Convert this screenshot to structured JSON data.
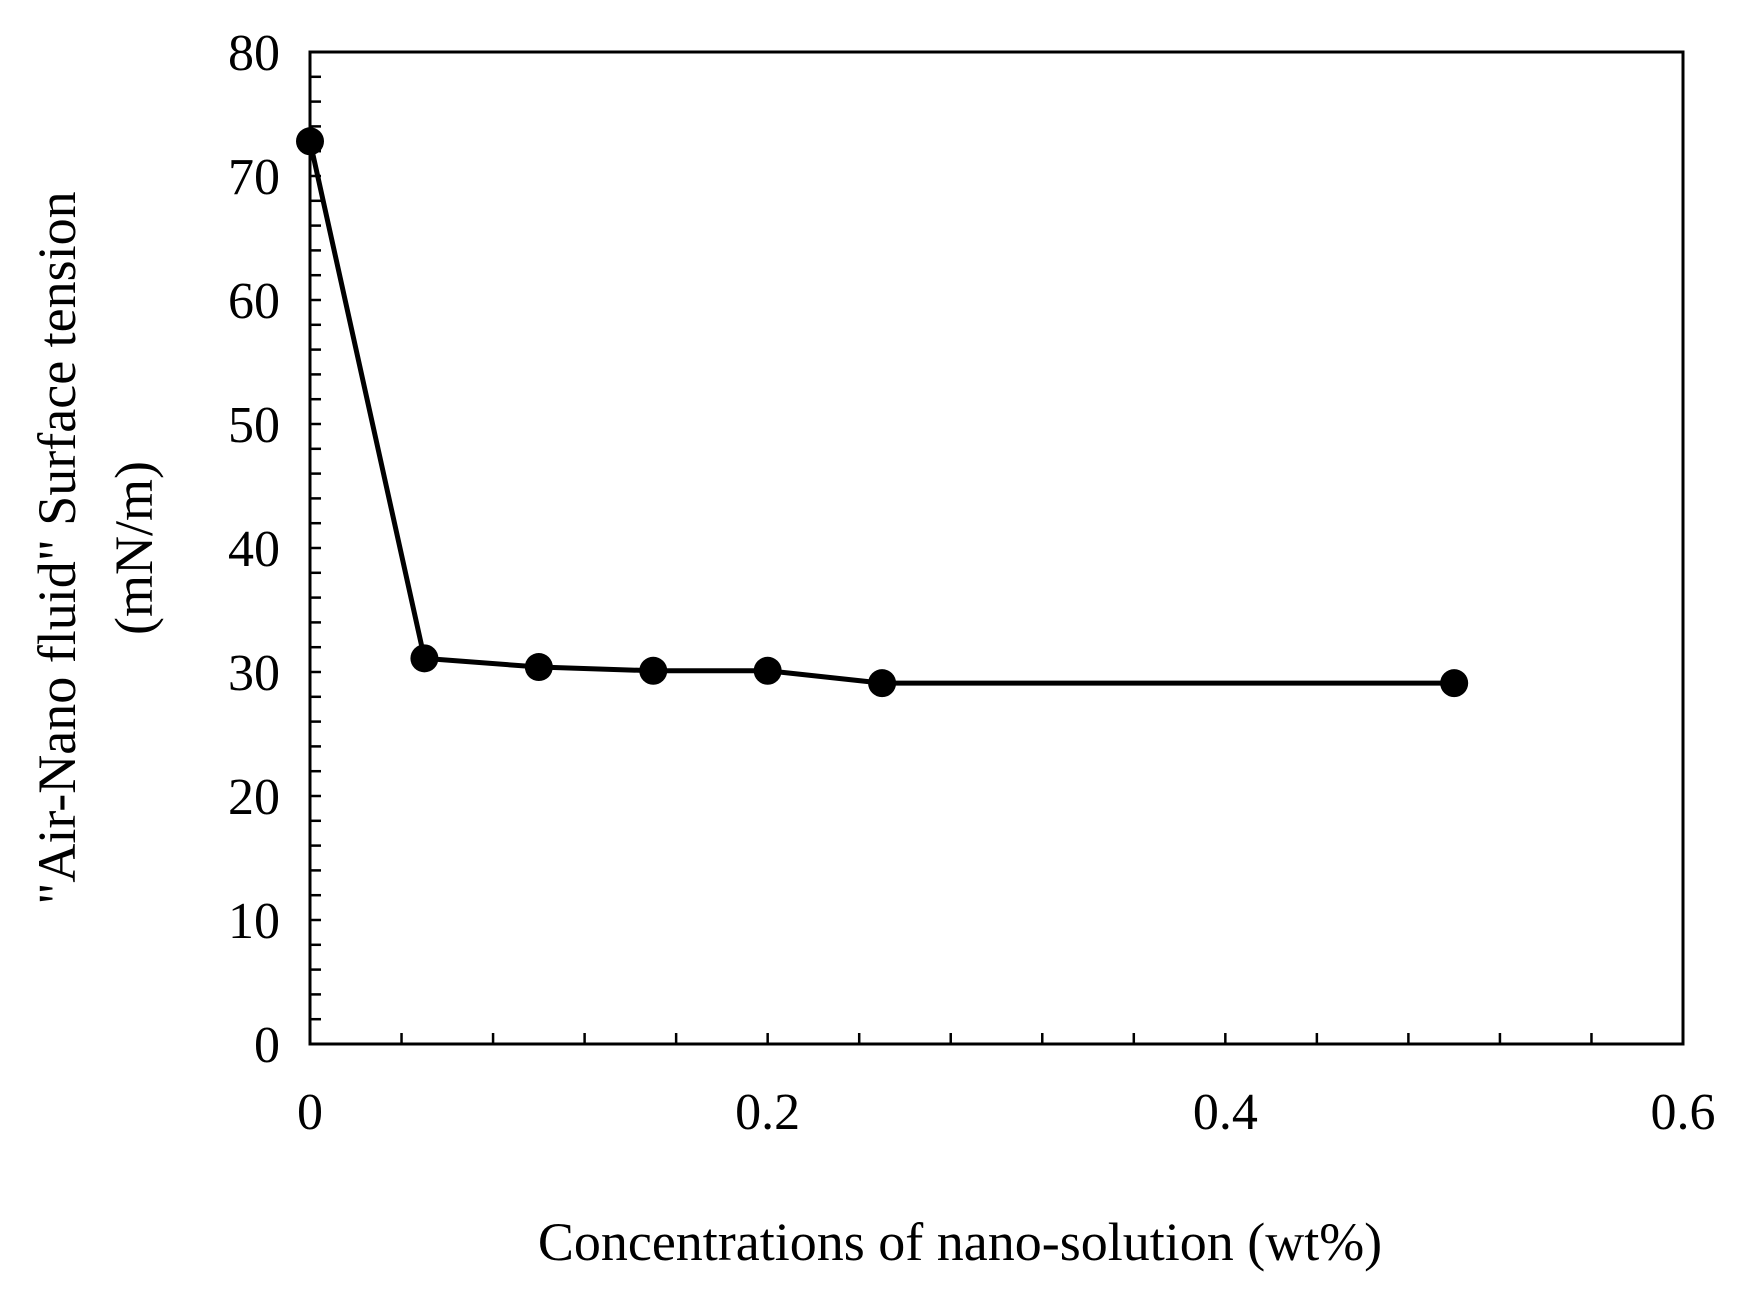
{
  "chart_data": {
    "type": "line",
    "title": "",
    "xlabel": "Concentrations of nano-solution (wt%)",
    "ylabel_line1": "\"Air-Nano fluid\" Surface tension",
    "ylabel_line2": "(mN/m)",
    "xlim": [
      0,
      0.6
    ],
    "ylim": [
      0,
      80
    ],
    "x_ticks": [
      0,
      0.2,
      0.4,
      0.6
    ],
    "x_tick_labels": [
      "0",
      "0.2",
      "0.4",
      "0.6"
    ],
    "x_minor_step": 0.04,
    "y_ticks": [
      0,
      10,
      20,
      30,
      40,
      50,
      60,
      70,
      80
    ],
    "y_tick_labels": [
      "0",
      "10",
      "20",
      "30",
      "40",
      "50",
      "60",
      "70",
      "80"
    ],
    "y_minor_step": 2,
    "grid": false,
    "legend": "none",
    "series": [
      {
        "name": "Surface tension",
        "color": "#000000",
        "marker": "filled-circle",
        "x": [
          0,
          0.05,
          0.1,
          0.15,
          0.2,
          0.25,
          0.5
        ],
        "y": [
          72.8,
          31.1,
          30.4,
          30.1,
          30.1,
          29.1,
          29.1
        ]
      }
    ]
  }
}
